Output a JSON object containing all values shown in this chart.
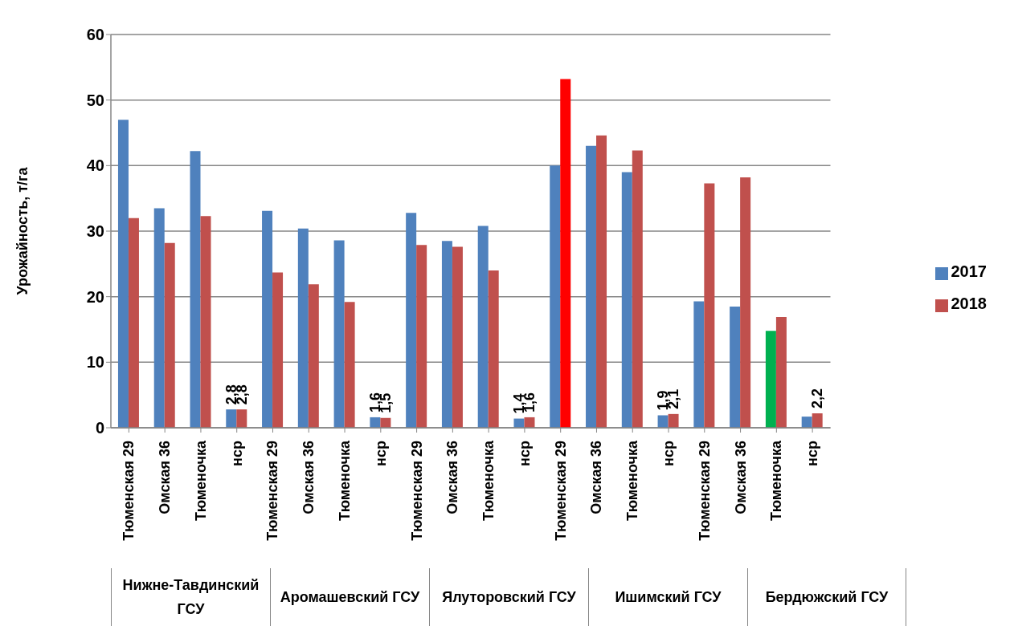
{
  "chart_data": {
    "type": "bar",
    "ylabel": "Урожайность, т/га",
    "categories": [
      "Тюменская 29",
      "Омская 36",
      "Тюменочка",
      "нср",
      "Тюменская 29",
      "Омская 36",
      "Тюменочка",
      "нср",
      "Тюменская 29",
      "Омская 36",
      "Тюменочка",
      "нср",
      "Тюменская 29",
      "Омская 36",
      "Тюменочка",
      "нср",
      "Тюменская 29",
      "Омская 36",
      "Тюменочка",
      "нср"
    ],
    "series": [
      {
        "name": "2017",
        "color": "#4f81bd",
        "values": [
          47.0,
          33.5,
          42.2,
          2.8,
          33.1,
          30.4,
          28.6,
          1.6,
          32.8,
          28.5,
          30.8,
          1.4,
          40.0,
          43.0,
          39.0,
          1.9,
          19.3,
          18.5,
          14.8,
          1.7
        ],
        "colors": [
          "#4f81bd",
          "#4f81bd",
          "#4f81bd",
          "#4f81bd",
          "#4f81bd",
          "#4f81bd",
          "#4f81bd",
          "#4f81bd",
          "#4f81bd",
          "#4f81bd",
          "#4f81bd",
          "#4f81bd",
          "#4f81bd",
          "#4f81bd",
          "#4f81bd",
          "#4f81bd",
          "#4f81bd",
          "#4f81bd",
          "#00b050",
          "#4f81bd"
        ],
        "value_labels": [
          null,
          null,
          null,
          "2,8",
          null,
          null,
          null,
          "1,6",
          null,
          null,
          null,
          "1,4",
          null,
          null,
          null,
          "1,9",
          null,
          null,
          null,
          null
        ]
      },
      {
        "name": "2018",
        "color": "#c0504d",
        "values": [
          32.0,
          28.2,
          32.3,
          2.8,
          23.7,
          21.9,
          19.2,
          1.5,
          27.9,
          27.6,
          24.0,
          1.6,
          53.2,
          44.6,
          42.3,
          2.1,
          37.3,
          38.2,
          16.9,
          2.2
        ],
        "colors": [
          "#c0504d",
          "#c0504d",
          "#c0504d",
          "#c0504d",
          "#c0504d",
          "#c0504d",
          "#c0504d",
          "#c0504d",
          "#c0504d",
          "#c0504d",
          "#c0504d",
          "#c0504d",
          "#ff0000",
          "#c0504d",
          "#c0504d",
          "#c0504d",
          "#c0504d",
          "#c0504d",
          "#c0504d",
          "#c0504d"
        ],
        "value_labels": [
          null,
          null,
          null,
          "2,8",
          null,
          null,
          null,
          "1,5",
          null,
          null,
          null,
          "1,6",
          null,
          null,
          null,
          "2,1",
          null,
          null,
          null,
          "2,2"
        ]
      }
    ],
    "annotations": [
      "Нижне-Тавдинский ГСУ",
      "Аромашевский ГСУ",
      "Ялуторовский ГСУ",
      "Ишимский ГСУ",
      "Бердюжский ГСУ"
    ],
    "ylim": [
      0,
      60
    ],
    "yticks": [
      0,
      10,
      20,
      30,
      40,
      50,
      60
    ],
    "grid": "y",
    "legend": "right"
  }
}
